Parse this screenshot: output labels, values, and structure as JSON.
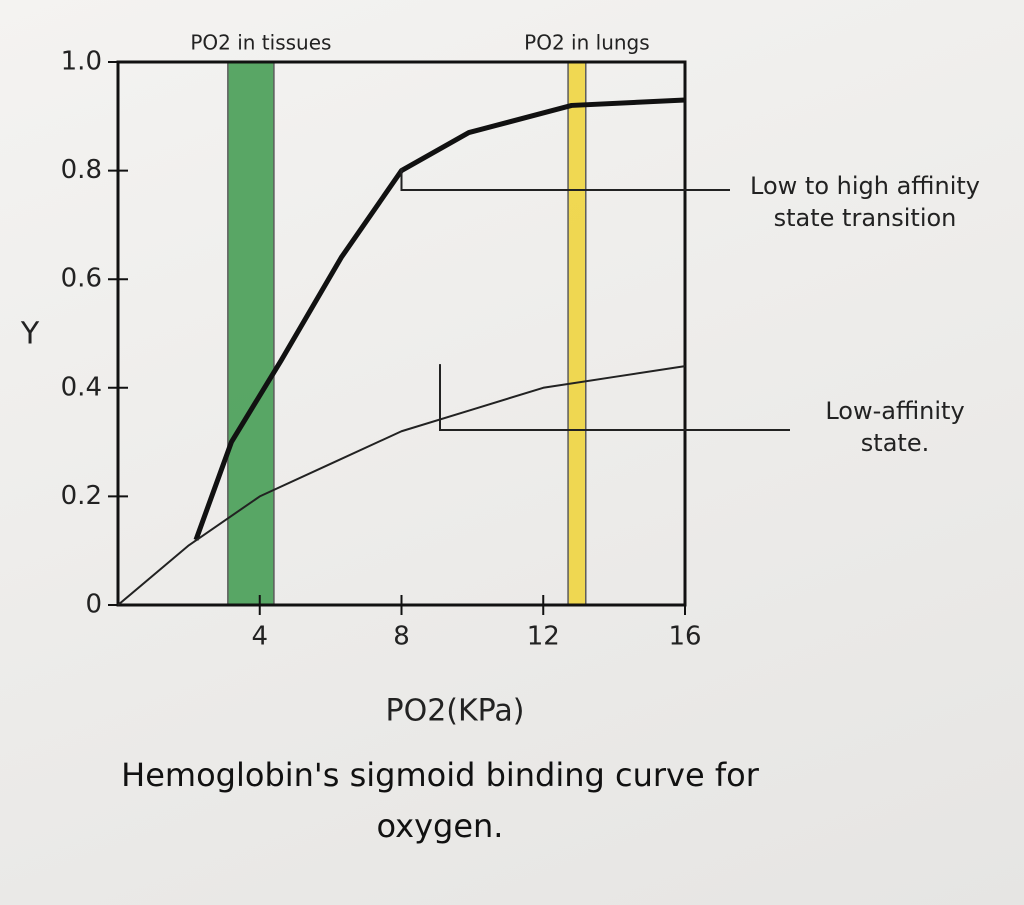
{
  "chart_data": {
    "type": "line",
    "title": "Hemoglobin's sigmoid binding curve for oxygen.",
    "xlabel": "PO2(KPa)",
    "ylabel": "Y",
    "xlim": [
      0,
      16
    ],
    "ylim": [
      0,
      1
    ],
    "xticks": [
      4,
      8,
      12,
      16
    ],
    "yticks": [
      0,
      0.2,
      0.4,
      0.6,
      0.8,
      {
        "value": 1,
        "label": "1.0"
      }
    ],
    "bands": [
      {
        "label": "PO2 in tissues",
        "range": [
          3.1,
          4.4
        ],
        "color": "#3f9a4e"
      },
      {
        "label": "PO2 in lungs",
        "range": [
          12.7,
          13.2
        ],
        "color": "#f0d437"
      }
    ],
    "series": [
      {
        "color": "#111111",
        "x": [
          2.2,
          3.2,
          4.6,
          6.3,
          8,
          9.9,
          12.8,
          16
        ],
        "values": [
          0.12,
          0.3,
          0.45,
          0.64,
          0.8,
          0.87,
          0.92,
          0.93
        ]
      },
      {
        "color": "#222222",
        "x": [
          0,
          2,
          4,
          6,
          8,
          10,
          12,
          14,
          16
        ],
        "values": [
          0,
          0.11,
          0.2,
          0.26,
          0.32,
          0.36,
          0.4,
          0.42,
          0.44
        ]
      }
    ],
    "annotations": [
      {
        "text": "Low to high affinity state transition",
        "series": 0,
        "point": 4
      },
      {
        "text": "Low-affinity state.",
        "series": 1,
        "point": 9
      }
    ]
  }
}
